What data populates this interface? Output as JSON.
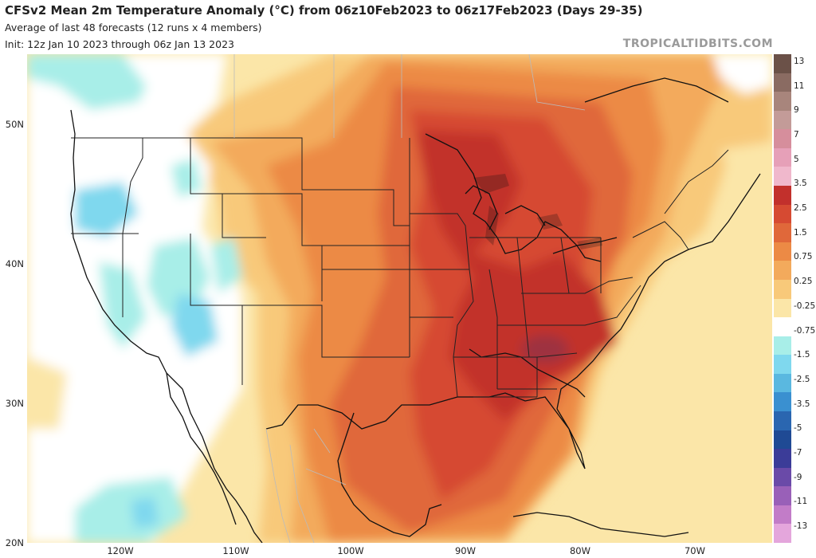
{
  "header": {
    "title": "CFSv2 Mean 2m Temperature Anomaly (°C) from 06z10Feb2023 to 06z17Feb2023 (Days 29-35)",
    "subtitle": "Average of last 48 forecasts (12 runs x 4 members)",
    "init": "Init: 12z Jan 10 2023 through 06z Jan 13 2023",
    "credit": "TROPICALTIDBITS.COM"
  },
  "map": {
    "lat_labels": [
      "50N",
      "40N",
      "30N",
      "20N"
    ],
    "lon_labels": [
      "120W",
      "110W",
      "100W",
      "90W",
      "80W",
      "70W"
    ]
  },
  "colorbar": {
    "labels": [
      "13",
      "11",
      "9",
      "7",
      "5",
      "3.5",
      "2.5",
      "1.5",
      "0.75",
      "0.25",
      "-0.25",
      "-0.75",
      "-1.5",
      "-2.5",
      "-3.5",
      "-5",
      "-7",
      "-9",
      "-11",
      "-13"
    ],
    "colors": [
      "#6b5148",
      "#8a6b62",
      "#a8857c",
      "#c39b98",
      "#d68e9c",
      "#e6a0b8",
      "#f0b8cc",
      "#c2302c",
      "#d64a32",
      "#e0683a",
      "#ec8a45",
      "#f3aa5c",
      "#f8c97a",
      "#fbe6a8",
      "#ffffff",
      "#a8eee8",
      "#7fd8ee",
      "#5ab8e0",
      "#3a90d0",
      "#2a66b0",
      "#1f4a94",
      "#3b3c98",
      "#6a4aa8",
      "#9960b8",
      "#c27cc8",
      "#e4a6dc"
    ]
  }
}
